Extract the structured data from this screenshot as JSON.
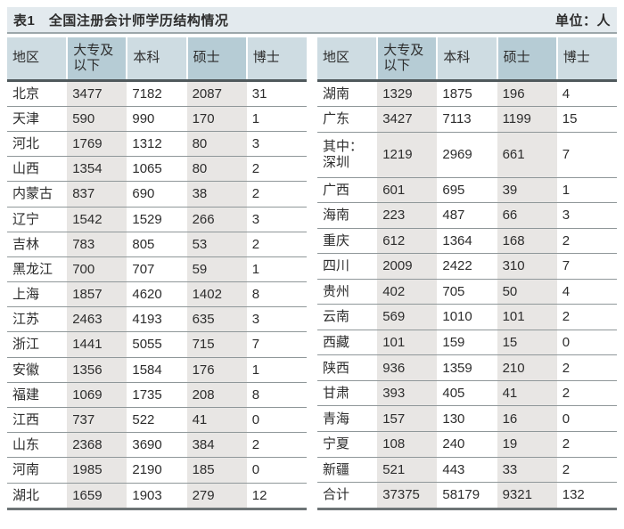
{
  "chart_data": {
    "type": "table",
    "title": "表1　全国注册会计师学历结构情况",
    "unit": "单位：人",
    "columns": [
      "地区",
      "大专及以下",
      "本科",
      "硕士",
      "博士"
    ],
    "left_rows": [
      [
        "北京",
        3477,
        7182,
        2087,
        31
      ],
      [
        "天津",
        590,
        990,
        170,
        1
      ],
      [
        "河北",
        1769,
        1312,
        80,
        3
      ],
      [
        "山西",
        1354,
        1065,
        80,
        2
      ],
      [
        "内蒙古",
        837,
        690,
        38,
        2
      ],
      [
        "辽宁",
        1542,
        1529,
        266,
        3
      ],
      [
        "吉林",
        783,
        805,
        53,
        2
      ],
      [
        "黑龙江",
        700,
        707,
        59,
        1
      ],
      [
        "上海",
        1857,
        4620,
        1402,
        8
      ],
      [
        "江苏",
        2463,
        4193,
        635,
        3
      ],
      [
        "浙江",
        1441,
        5055,
        715,
        7
      ],
      [
        "安徽",
        1356,
        1584,
        176,
        1
      ],
      [
        "福建",
        1069,
        1735,
        208,
        8
      ],
      [
        "江西",
        737,
        522,
        41,
        0
      ],
      [
        "山东",
        2368,
        3690,
        384,
        2
      ],
      [
        "河南",
        1985,
        2190,
        185,
        0
      ],
      [
        "湖北",
        1659,
        1903,
        279,
        12
      ]
    ],
    "right_rows": [
      [
        "湖南",
        1329,
        1875,
        196,
        4
      ],
      [
        "广东",
        3427,
        7113,
        1199,
        15
      ],
      [
        "其中：\n深圳",
        1219,
        2969,
        661,
        7
      ],
      [
        "广西",
        601,
        695,
        39,
        1
      ],
      [
        "海南",
        223,
        487,
        66,
        3
      ],
      [
        "重庆",
        612,
        1364,
        168,
        2
      ],
      [
        "四川",
        2009,
        2422,
        310,
        7
      ],
      [
        "贵州",
        402,
        705,
        50,
        4
      ],
      [
        "云南",
        569,
        1010,
        101,
        2
      ],
      [
        "西藏",
        101,
        159,
        15,
        0
      ],
      [
        "陕西",
        936,
        1359,
        210,
        2
      ],
      [
        "甘肃",
        393,
        405,
        41,
        2
      ],
      [
        "青海",
        157,
        130,
        16,
        0
      ],
      [
        "宁夏",
        108,
        240,
        19,
        2
      ],
      [
        "新疆",
        521,
        443,
        33,
        2
      ],
      [
        "合计",
        37375,
        58179,
        9321,
        132
      ]
    ]
  },
  "colors": {
    "band-bg": "#e3eaee",
    "header-light": "#cedce2",
    "header-dark": "#b6ccd5",
    "stripe": "#e8e6e4",
    "rule-band": "#9ca7ab",
    "rule-header": "#50595c",
    "rule-row": "#8f9799",
    "rule-bottom": "#6d7476",
    "text": "#2d2d2d"
  }
}
